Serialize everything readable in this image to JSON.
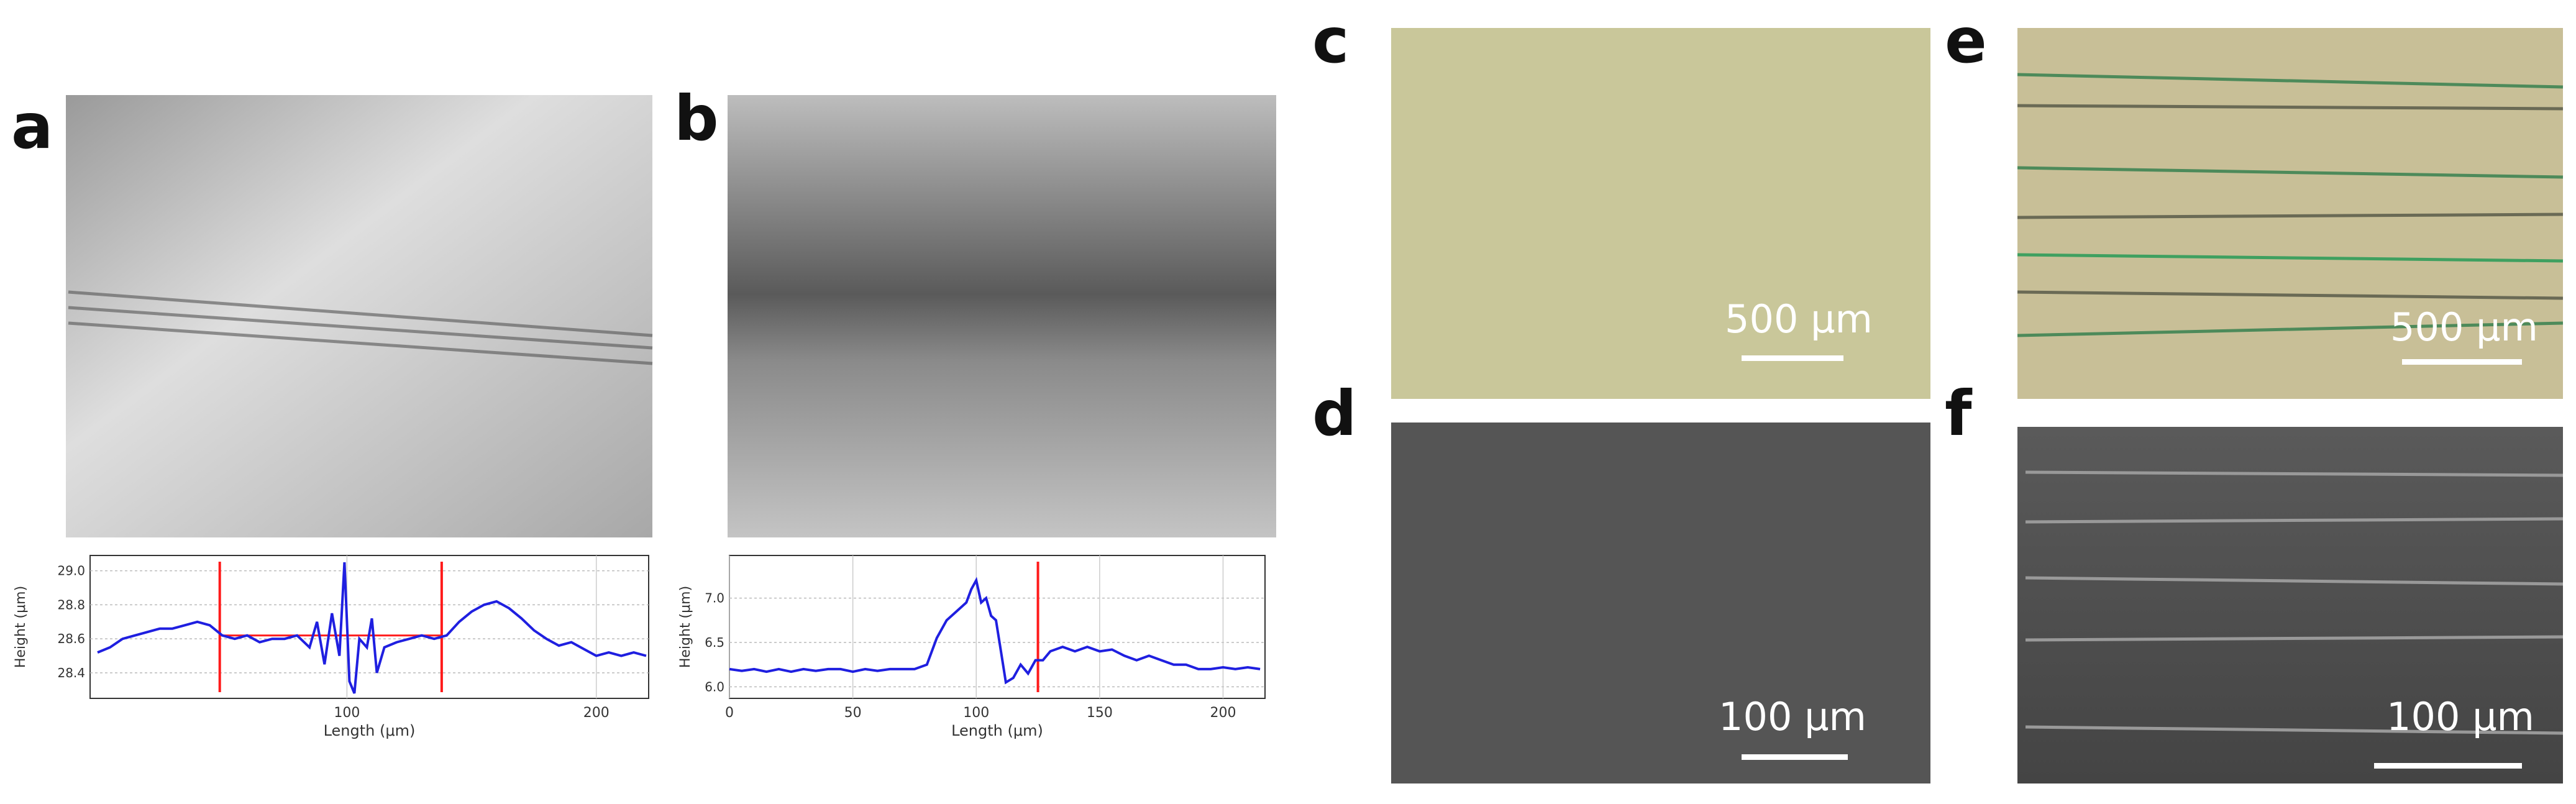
{
  "panels": {
    "a": {
      "label": "a"
    },
    "b": {
      "label": "b"
    },
    "c": {
      "label": "c",
      "scale_bar": "500 μm"
    },
    "d": {
      "label": "d",
      "scale_bar": "100 μm"
    },
    "e": {
      "label": "e",
      "scale_bar": "500 μm"
    },
    "f": {
      "label": "f",
      "scale_bar": "100 μm"
    }
  },
  "chart_data": [
    {
      "type": "line",
      "xlabel": "Length (μm)",
      "ylabel": "Height (μm)",
      "grid": true,
      "x": [
        0,
        5,
        10,
        15,
        20,
        25,
        30,
        35,
        40,
        45,
        50,
        55,
        60,
        65,
        70,
        75,
        80,
        85,
        88,
        91,
        94,
        97,
        99,
        101,
        103,
        105,
        108,
        110,
        112,
        115,
        120,
        125,
        130,
        135,
        140,
        145,
        150,
        155,
        160,
        165,
        170,
        175,
        180,
        185,
        190,
        195,
        200,
        205,
        210,
        215,
        220
      ],
      "series": [
        {
          "color": "#1f1fe0",
          "values": [
            28.52,
            28.55,
            28.6,
            28.62,
            28.64,
            28.66,
            28.66,
            28.68,
            28.7,
            28.68,
            28.62,
            28.6,
            28.62,
            28.58,
            28.6,
            28.6,
            28.62,
            28.55,
            28.7,
            28.45,
            28.75,
            28.5,
            29.05,
            28.35,
            28.28,
            28.6,
            28.55,
            28.72,
            28.4,
            28.55,
            28.58,
            28.6,
            28.62,
            28.6,
            28.62,
            28.7,
            28.76,
            28.8,
            28.82,
            28.78,
            28.72,
            28.65,
            28.6,
            28.56,
            28.58,
            28.54,
            28.5,
            28.52,
            28.5,
            28.52,
            28.5
          ]
        }
      ],
      "xlim": [
        -3,
        221
      ],
      "ylim": [
        28.25,
        29.09
      ],
      "xticks": [
        100,
        200
      ],
      "yticks": [
        {
          "value": 29.0,
          "label": "29.0"
        },
        {
          "value": 28.8,
          "label": "28.8"
        },
        {
          "value": 28.6,
          "label": "28.6"
        },
        {
          "value": 28.4,
          "label": "28.4"
        }
      ],
      "reference_lines": {
        "color": "#ff1a1a",
        "x": [
          49,
          138
        ],
        "y": 28.62
      }
    },
    {
      "type": "line",
      "xlabel": "Length (μm)",
      "ylabel": "Height (μm)",
      "grid": true,
      "x": [
        0,
        5,
        10,
        15,
        20,
        25,
        30,
        35,
        40,
        45,
        50,
        55,
        60,
        65,
        70,
        75,
        80,
        84,
        88,
        92,
        96,
        98,
        100,
        102,
        104,
        106,
        108,
        110,
        112,
        115,
        118,
        121,
        124,
        127,
        130,
        135,
        140,
        145,
        150,
        155,
        160,
        165,
        170,
        175,
        180,
        185,
        190,
        195,
        200,
        205,
        210,
        215
      ],
      "series": [
        {
          "color": "#1f1fe0",
          "values": [
            6.2,
            6.18,
            6.2,
            6.17,
            6.2,
            6.17,
            6.2,
            6.18,
            6.2,
            6.2,
            6.17,
            6.2,
            6.18,
            6.2,
            6.2,
            6.2,
            6.25,
            6.55,
            6.75,
            6.85,
            6.95,
            7.1,
            7.2,
            6.95,
            7.0,
            6.8,
            6.75,
            6.4,
            6.05,
            6.1,
            6.25,
            6.15,
            6.3,
            6.3,
            6.4,
            6.45,
            6.4,
            6.45,
            6.4,
            6.42,
            6.35,
            6.3,
            6.35,
            6.3,
            6.25,
            6.25,
            6.2,
            6.2,
            6.22,
            6.2,
            6.22,
            6.2
          ]
        }
      ],
      "xlim": [
        0,
        217
      ],
      "ylim": [
        5.87,
        7.48
      ],
      "xticks": [
        0,
        50,
        100,
        150,
        200
      ],
      "yticks": [
        {
          "value": 7.0,
          "label": "7.0"
        },
        {
          "value": 6.5,
          "label": "6.5"
        },
        {
          "value": 6.0,
          "label": "6.0"
        }
      ],
      "reference_lines": {
        "color": "#ff1a1a",
        "x": [
          125
        ]
      }
    }
  ]
}
